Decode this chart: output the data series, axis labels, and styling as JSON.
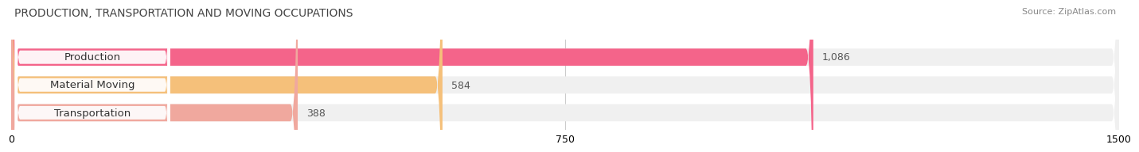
{
  "title": "PRODUCTION, TRANSPORTATION AND MOVING OCCUPATIONS",
  "source": "Source: ZipAtlas.com",
  "categories": [
    "Production",
    "Material Moving",
    "Transportation"
  ],
  "values": [
    1086,
    584,
    388
  ],
  "bar_colors": [
    "#f4648a",
    "#f5c07a",
    "#f0a89e"
  ],
  "bar_bg_colors": [
    "#f0f0f0",
    "#f0f0f0",
    "#f0f0f0"
  ],
  "value_labels": [
    "1,086",
    "584",
    "388"
  ],
  "xlim": [
    0,
    1500
  ],
  "xticks": [
    0,
    750,
    1500
  ],
  "figsize": [
    14.06,
    1.96
  ],
  "dpi": 100,
  "background_color": "#ffffff",
  "bar_height": 0.62,
  "label_fontsize": 9.5,
  "title_fontsize": 10,
  "source_fontsize": 8,
  "value_fontsize": 9
}
